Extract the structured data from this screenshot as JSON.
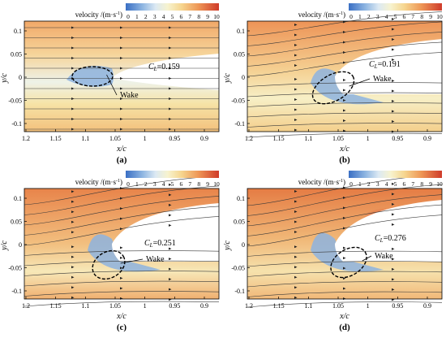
{
  "figure": {
    "panels": [
      {
        "label": "(a)",
        "cl_prefix": "C",
        "cl_sub": "L",
        "cl_value": "=0.159",
        "wake": "Wake"
      },
      {
        "label": "(b)",
        "cl_prefix": "C",
        "cl_sub": "L",
        "cl_value": "=0.191",
        "wake": "Wake"
      },
      {
        "label": "(c)",
        "cl_prefix": "C",
        "cl_sub": "L",
        "cl_value": "=0.251",
        "wake": "Wake"
      },
      {
        "label": "(d)",
        "cl_prefix": "C",
        "cl_sub": "L",
        "cl_value": "=0.276",
        "wake": "Wake"
      }
    ],
    "colorbar": {
      "title_main": "velocity /(m·s",
      "title_sup": "-1",
      "title_end": ")",
      "ticks": [
        "0",
        "1",
        "2",
        "3",
        "4",
        "5",
        "6",
        "7",
        "8",
        "9",
        "10"
      ]
    },
    "x_axis": {
      "label": "x/c",
      "ticks": [
        "1.2",
        "1.15",
        "1.1",
        "1.05",
        "1",
        "0.95",
        "0.9"
      ]
    },
    "y_axis": {
      "label": "y/c",
      "ticks": [
        "0.1",
        "0.05",
        "0",
        "-0.05",
        "-0.1"
      ]
    }
  }
}
